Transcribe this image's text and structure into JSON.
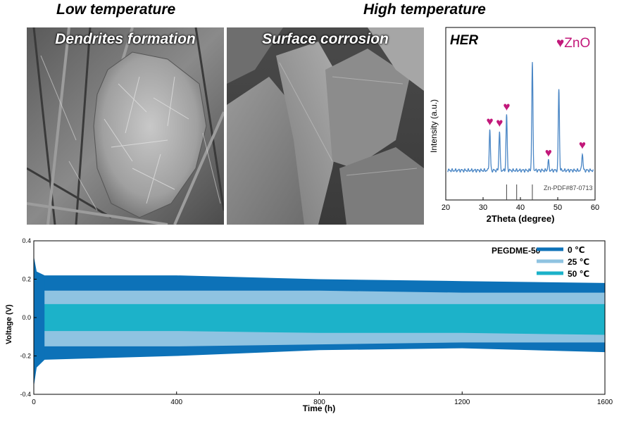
{
  "headings": {
    "low": "Low temperature",
    "high": "High temperature"
  },
  "micrographs": {
    "low_label": "Dendrites formation",
    "high_label": "Surface corrosion"
  },
  "colors": {
    "xrd_line": "#4a86c5",
    "heart": "#c2187a",
    "c0": "#0d72b8",
    "c25": "#8fc3e1",
    "c50": "#1cb2c9"
  },
  "chart_data": [
    {
      "type": "line",
      "title": "HER",
      "xlabel": "2Theta (degree)",
      "ylabel": "Intensity (a.u.)",
      "xlim": [
        20,
        60
      ],
      "xticks": [
        20,
        30,
        40,
        50,
        60
      ],
      "annotation": "♥ZnO",
      "reference_label": "Zn-PDF#87-0713",
      "reference_lines": [
        36.3,
        39.0,
        43.2
      ],
      "peaks": [
        {
          "x": 31.8,
          "height": 0.38,
          "zno": true
        },
        {
          "x": 34.4,
          "height": 0.37,
          "zno": true
        },
        {
          "x": 36.3,
          "height": 0.52,
          "zno": true
        },
        {
          "x": 43.2,
          "height": 1.0,
          "zno": false
        },
        {
          "x": 47.5,
          "height": 0.09,
          "zno": true
        },
        {
          "x": 50.3,
          "height": 0.76,
          "zno": false
        },
        {
          "x": 56.6,
          "height": 0.16,
          "zno": true
        }
      ]
    },
    {
      "type": "area",
      "xlabel": "Time (h)",
      "ylabel": "Voltage (V)",
      "xlim": [
        0,
        1600
      ],
      "ylim": [
        -0.4,
        0.4
      ],
      "xticks": [
        0,
        400,
        800,
        1200,
        1600
      ],
      "yticks": [
        -0.4,
        -0.2,
        0.0,
        0.2,
        0.4
      ],
      "legend_title": "PEGDME-50",
      "legend_position": "top-right",
      "series": [
        {
          "name": "0 ℃",
          "x": [
            0,
            30,
            400,
            800,
            1200,
            1600
          ],
          "upper": [
            0.22,
            0.22,
            0.22,
            0.2,
            0.19,
            0.18
          ],
          "lower": [
            -0.23,
            -0.22,
            -0.2,
            -0.17,
            -0.16,
            -0.18
          ]
        },
        {
          "name": "25 ℃",
          "x": [
            0,
            400,
            800,
            1200,
            1600
          ],
          "upper": [
            0.14,
            0.14,
            0.14,
            0.13,
            0.13
          ],
          "lower": [
            -0.15,
            -0.15,
            -0.14,
            -0.13,
            -0.13
          ]
        },
        {
          "name": "50 ℃",
          "x": [
            0,
            400,
            800,
            1200,
            1600
          ],
          "upper": [
            0.07,
            0.07,
            0.07,
            0.07,
            0.07
          ],
          "lower": [
            -0.07,
            -0.07,
            -0.08,
            -0.08,
            -0.09
          ]
        }
      ]
    }
  ]
}
